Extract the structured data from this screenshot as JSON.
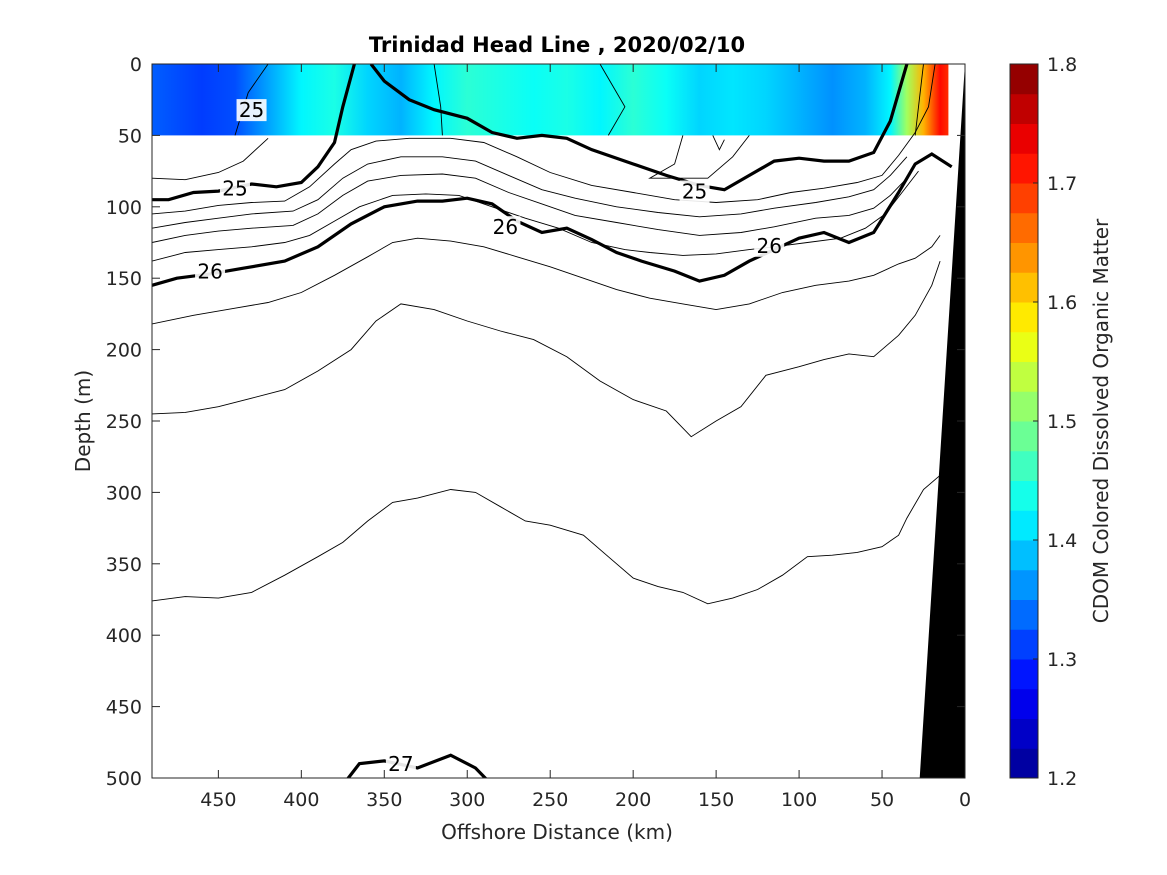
{
  "chart_data": {
    "type": "heatmap",
    "title": "Trinidad Head Line , 2020/02/10",
    "xlabel": "Offshore Distance (km)",
    "ylabel": "Depth (m)",
    "xlim": [
      490,
      0
    ],
    "ylim": [
      0,
      500
    ],
    "x_reversed": true,
    "y_reversed": true,
    "xticks": [
      450,
      400,
      350,
      300,
      250,
      200,
      150,
      100,
      50,
      0
    ],
    "yticks": [
      0,
      50,
      100,
      150,
      200,
      250,
      300,
      350,
      400,
      450,
      500
    ],
    "colorbar": {
      "label": "CDOM Colored Dissolved Organic Matter",
      "clim": [
        1.2,
        1.8
      ],
      "ticks": [
        1.8,
        1.7,
        1.6,
        1.5,
        1.4,
        1.3,
        1.2
      ]
    },
    "colormap": [
      "#00008f",
      "#0000ff",
      "#0080ff",
      "#00ffff",
      "#80ff80",
      "#ffff00",
      "#ff8000",
      "#ff0000",
      "#800000"
    ],
    "cdom_field": {
      "depth_range": [
        0,
        50
      ],
      "distance_range": [
        490,
        10
      ],
      "description_stops": [
        {
          "x": 490,
          "v": 1.33
        },
        {
          "x": 460,
          "v": 1.31
        },
        {
          "x": 440,
          "v": 1.32
        },
        {
          "x": 420,
          "v": 1.37
        },
        {
          "x": 400,
          "v": 1.42
        },
        {
          "x": 380,
          "v": 1.44
        },
        {
          "x": 360,
          "v": 1.4
        },
        {
          "x": 340,
          "v": 1.38
        },
        {
          "x": 320,
          "v": 1.42
        },
        {
          "x": 300,
          "v": 1.45
        },
        {
          "x": 280,
          "v": 1.44
        },
        {
          "x": 260,
          "v": 1.43
        },
        {
          "x": 240,
          "v": 1.44
        },
        {
          "x": 220,
          "v": 1.42
        },
        {
          "x": 200,
          "v": 1.45
        },
        {
          "x": 180,
          "v": 1.43
        },
        {
          "x": 160,
          "v": 1.4
        },
        {
          "x": 140,
          "v": 1.41
        },
        {
          "x": 120,
          "v": 1.4
        },
        {
          "x": 100,
          "v": 1.38
        },
        {
          "x": 80,
          "v": 1.36
        },
        {
          "x": 60,
          "v": 1.38
        },
        {
          "x": 45,
          "v": 1.42
        },
        {
          "x": 35,
          "v": 1.52
        },
        {
          "x": 25,
          "v": 1.62
        },
        {
          "x": 15,
          "v": 1.72
        },
        {
          "x": 10,
          "v": 1.7
        }
      ]
    },
    "density_contours": [
      {
        "level": "25",
        "bold": true,
        "labels": [
          [
            430,
            33
          ],
          [
            163,
            90
          ],
          [
            440,
            88
          ]
        ],
        "points": [
          [
            490,
            95
          ],
          [
            480,
            95
          ],
          [
            465,
            90
          ],
          [
            450,
            89
          ],
          [
            430,
            84
          ],
          [
            415,
            86
          ],
          [
            400,
            83
          ],
          [
            390,
            72
          ],
          [
            380,
            55
          ],
          [
            375,
            30
          ],
          [
            368,
            0
          ]
        ],
        "points2": [
          [
            358,
            0
          ],
          [
            350,
            12
          ],
          [
            335,
            25
          ],
          [
            320,
            32
          ],
          [
            300,
            38
          ],
          [
            285,
            48
          ],
          [
            270,
            52
          ],
          [
            255,
            50
          ],
          [
            240,
            52
          ],
          [
            225,
            60
          ],
          [
            200,
            70
          ],
          [
            180,
            78
          ],
          [
            160,
            85
          ],
          [
            145,
            88
          ],
          [
            130,
            78
          ],
          [
            115,
            68
          ],
          [
            100,
            66
          ],
          [
            85,
            68
          ],
          [
            70,
            68
          ],
          [
            55,
            62
          ],
          [
            45,
            40
          ],
          [
            35,
            0
          ]
        ]
      },
      {
        "level": "26",
        "bold": true,
        "labels": [
          [
            455,
            146
          ],
          [
            277,
            115
          ],
          [
            118,
            128
          ]
        ],
        "points": [
          [
            490,
            155
          ],
          [
            475,
            150
          ],
          [
            455,
            147
          ],
          [
            435,
            143
          ],
          [
            410,
            138
          ],
          [
            390,
            128
          ],
          [
            370,
            112
          ],
          [
            350,
            100
          ],
          [
            330,
            96
          ],
          [
            315,
            96
          ],
          [
            300,
            94
          ],
          [
            285,
            98
          ],
          [
            270,
            110
          ],
          [
            255,
            118
          ],
          [
            240,
            115
          ],
          [
            225,
            123
          ],
          [
            210,
            132
          ],
          [
            195,
            138
          ],
          [
            175,
            145
          ],
          [
            160,
            152
          ],
          [
            145,
            148
          ],
          [
            130,
            138
          ],
          [
            115,
            130
          ],
          [
            100,
            122
          ],
          [
            85,
            118
          ],
          [
            70,
            125
          ],
          [
            55,
            118
          ],
          [
            40,
            90
          ],
          [
            30,
            70
          ],
          [
            20,
            63
          ],
          [
            8,
            72
          ]
        ]
      },
      {
        "level": "27",
        "bold": true,
        "labels": [
          [
            340,
            491
          ]
        ],
        "points": [
          [
            375,
            505
          ],
          [
            365,
            490
          ],
          [
            350,
            488
          ],
          [
            330,
            493
          ],
          [
            310,
            484
          ],
          [
            295,
            493
          ],
          [
            285,
            505
          ]
        ]
      }
    ],
    "thin_contours": [
      [
        [
          490,
          80
        ],
        [
          470,
          81
        ],
        [
          450,
          76
        ],
        [
          435,
          68
        ],
        [
          420,
          52
        ]
      ],
      [
        [
          490,
          105
        ],
        [
          470,
          103
        ],
        [
          450,
          99
        ],
        [
          430,
          97
        ],
        [
          410,
          96
        ],
        [
          395,
          86
        ],
        [
          380,
          70
        ],
        [
          370,
          60
        ],
        [
          355,
          54
        ],
        [
          335,
          52
        ],
        [
          310,
          52
        ],
        [
          290,
          55
        ],
        [
          270,
          65
        ],
        [
          250,
          76
        ],
        [
          225,
          85
        ],
        [
          200,
          90
        ],
        [
          175,
          95
        ],
        [
          150,
          97
        ],
        [
          125,
          95
        ],
        [
          105,
          90
        ],
        [
          85,
          87
        ],
        [
          65,
          83
        ],
        [
          50,
          78
        ],
        [
          40,
          64
        ],
        [
          30,
          48
        ],
        [
          22,
          30
        ],
        [
          18,
          0
        ]
      ],
      [
        [
          490,
          115
        ],
        [
          470,
          111
        ],
        [
          450,
          108
        ],
        [
          430,
          105
        ],
        [
          405,
          103
        ],
        [
          390,
          95
        ],
        [
          375,
          80
        ],
        [
          360,
          70
        ],
        [
          340,
          65
        ],
        [
          315,
          65
        ],
        [
          295,
          68
        ],
        [
          275,
          78
        ],
        [
          255,
          88
        ],
        [
          235,
          94
        ],
        [
          210,
          100
        ],
        [
          185,
          104
        ],
        [
          160,
          107
        ],
        [
          135,
          105
        ],
        [
          115,
          101
        ],
        [
          90,
          97
        ],
        [
          70,
          93
        ],
        [
          55,
          88
        ],
        [
          45,
          78
        ],
        [
          35,
          65
        ]
      ],
      [
        [
          490,
          125
        ],
        [
          470,
          120
        ],
        [
          450,
          117
        ],
        [
          430,
          115
        ],
        [
          405,
          113
        ],
        [
          390,
          105
        ],
        [
          375,
          92
        ],
        [
          360,
          82
        ],
        [
          340,
          78
        ],
        [
          315,
          77
        ],
        [
          295,
          80
        ],
        [
          275,
          90
        ],
        [
          255,
          98
        ],
        [
          235,
          106
        ],
        [
          210,
          111
        ],
        [
          185,
          116
        ],
        [
          160,
          120
        ],
        [
          135,
          118
        ],
        [
          115,
          114
        ],
        [
          90,
          108
        ],
        [
          70,
          106
        ],
        [
          55,
          101
        ],
        [
          45,
          92
        ],
        [
          35,
          80
        ]
      ],
      [
        [
          490,
          138
        ],
        [
          470,
          132
        ],
        [
          450,
          130
        ],
        [
          430,
          128
        ],
        [
          410,
          125
        ],
        [
          395,
          120
        ],
        [
          380,
          110
        ],
        [
          365,
          100
        ],
        [
          345,
          92
        ],
        [
          325,
          91
        ],
        [
          305,
          92
        ],
        [
          285,
          100
        ],
        [
          265,
          108
        ],
        [
          245,
          115
        ],
        [
          225,
          125
        ],
        [
          205,
          130
        ],
        [
          190,
          132
        ],
        [
          170,
          134
        ],
        [
          150,
          133
        ],
        [
          130,
          130
        ],
        [
          115,
          128
        ],
        [
          95,
          125
        ],
        [
          75,
          122
        ],
        [
          60,
          115
        ],
        [
          48,
          105
        ],
        [
          38,
          90
        ],
        [
          28,
          75
        ]
      ],
      [
        [
          490,
          182
        ],
        [
          465,
          176
        ],
        [
          440,
          171
        ],
        [
          420,
          167
        ],
        [
          400,
          160
        ],
        [
          380,
          148
        ],
        [
          360,
          135
        ],
        [
          345,
          125
        ],
        [
          330,
          122
        ],
        [
          310,
          124
        ],
        [
          290,
          128
        ],
        [
          270,
          135
        ],
        [
          250,
          142
        ],
        [
          230,
          150
        ],
        [
          210,
          158
        ],
        [
          190,
          164
        ],
        [
          170,
          168
        ],
        [
          150,
          172
        ],
        [
          130,
          168
        ],
        [
          110,
          160
        ],
        [
          90,
          155
        ],
        [
          70,
          152
        ],
        [
          55,
          148
        ],
        [
          40,
          140
        ],
        [
          30,
          136
        ],
        [
          20,
          128
        ],
        [
          15,
          120
        ]
      ],
      [
        [
          490,
          245
        ],
        [
          470,
          244
        ],
        [
          450,
          240
        ],
        [
          430,
          234
        ],
        [
          410,
          228
        ],
        [
          390,
          215
        ],
        [
          370,
          200
        ],
        [
          355,
          180
        ],
        [
          340,
          168
        ],
        [
          320,
          172
        ],
        [
          300,
          180
        ],
        [
          280,
          187
        ],
        [
          260,
          193
        ],
        [
          240,
          205
        ],
        [
          220,
          222
        ],
        [
          200,
          235
        ],
        [
          180,
          243
        ],
        [
          165,
          261
        ],
        [
          150,
          250
        ],
        [
          135,
          240
        ],
        [
          120,
          218
        ],
        [
          100,
          212
        ],
        [
          85,
          207
        ],
        [
          70,
          203
        ],
        [
          55,
          205
        ],
        [
          40,
          190
        ],
        [
          30,
          176
        ],
        [
          20,
          155
        ],
        [
          15,
          138
        ]
      ],
      [
        [
          490,
          376
        ],
        [
          470,
          373
        ],
        [
          450,
          374
        ],
        [
          430,
          370
        ],
        [
          410,
          358
        ],
        [
          390,
          345
        ],
        [
          375,
          335
        ],
        [
          360,
          320
        ],
        [
          345,
          307
        ],
        [
          330,
          304
        ],
        [
          310,
          298
        ],
        [
          295,
          300
        ],
        [
          280,
          310
        ],
        [
          265,
          320
        ],
        [
          250,
          323
        ],
        [
          230,
          330
        ],
        [
          215,
          345
        ],
        [
          200,
          360
        ],
        [
          185,
          366
        ],
        [
          170,
          370
        ],
        [
          155,
          378
        ],
        [
          140,
          374
        ],
        [
          125,
          368
        ],
        [
          110,
          358
        ],
        [
          95,
          345
        ],
        [
          80,
          344
        ],
        [
          65,
          342
        ],
        [
          50,
          338
        ],
        [
          40,
          330
        ],
        [
          35,
          318
        ],
        [
          25,
          298
        ],
        [
          15,
          288
        ]
      ],
      [
        [
          440,
          50
        ],
        [
          432,
          20
        ],
        [
          420,
          0
        ]
      ],
      [
        [
          315,
          50
        ],
        [
          316,
          30
        ],
        [
          320,
          0
        ]
      ],
      [
        [
          170,
          50
        ],
        [
          175,
          70
        ],
        [
          190,
          80
        ],
        [
          155,
          80
        ],
        [
          140,
          65
        ],
        [
          130,
          50
        ]
      ],
      [
        [
          152,
          50
        ],
        [
          148,
          60
        ],
        [
          145,
          53
        ]
      ],
      [
        [
          215,
          50
        ],
        [
          205,
          30
        ],
        [
          220,
          0
        ]
      ],
      [
        [
          30,
          50
        ],
        [
          28,
          30
        ],
        [
          25,
          0
        ]
      ]
    ],
    "seafloor": {
      "description": "bottom topography mask",
      "points": [
        [
          0,
          5
        ],
        [
          27,
          500
        ],
        [
          0,
          500
        ]
      ]
    }
  }
}
